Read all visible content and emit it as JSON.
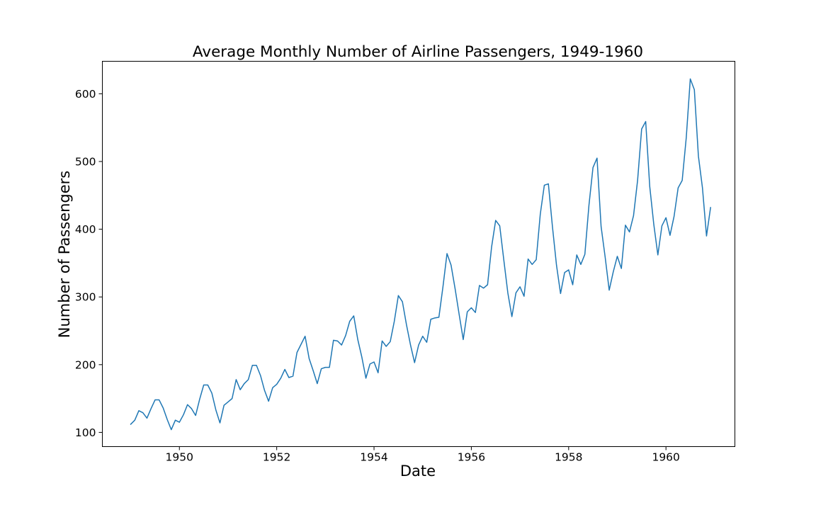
{
  "chart_data": {
    "type": "line",
    "title": "Average Monthly Number of Airline Passengers, 1949-1960",
    "xlabel": "Date",
    "ylabel": "Number of Passengers",
    "xlim": [
      "1948-06-01",
      "1961-06-01"
    ],
    "ylim": [
      79,
      648
    ],
    "x_ticks": [
      "1950",
      "1952",
      "1954",
      "1956",
      "1958",
      "1960"
    ],
    "y_ticks": [
      "100",
      "200",
      "300",
      "400",
      "500",
      "600"
    ],
    "grid": false,
    "legend": "none",
    "colors": {
      "line": "#1f77b4"
    },
    "x_start": "1949-01",
    "x_end": "1960-12",
    "x_step": "monthly",
    "series": [
      {
        "values": [
          112,
          118,
          132,
          129,
          121,
          135,
          148,
          148,
          136,
          119,
          104,
          118,
          115,
          126,
          141,
          135,
          125,
          149,
          170,
          170,
          158,
          133,
          114,
          140,
          145,
          150,
          178,
          163,
          172,
          178,
          199,
          199,
          184,
          162,
          146,
          166,
          171,
          180,
          193,
          181,
          183,
          218,
          230,
          242,
          209,
          191,
          172,
          194,
          196,
          196,
          236,
          235,
          229,
          243,
          264,
          272,
          237,
          211,
          180,
          201,
          204,
          188,
          235,
          227,
          234,
          264,
          302,
          293,
          259,
          229,
          203,
          229,
          242,
          233,
          267,
          269,
          270,
          315,
          364,
          347,
          312,
          274,
          237,
          278,
          284,
          277,
          317,
          313,
          318,
          374,
          413,
          405,
          355,
          306,
          271,
          306,
          315,
          301,
          356,
          348,
          355,
          422,
          465,
          467,
          404,
          347,
          305,
          336,
          340,
          318,
          362,
          348,
          363,
          435,
          491,
          505,
          404,
          359,
          310,
          337,
          360,
          342,
          406,
          396,
          420,
          472,
          548,
          559,
          463,
          407,
          362,
          405,
          417,
          391,
          419,
          461,
          472,
          535,
          622,
          606,
          508,
          461,
          390,
          432
        ]
      }
    ]
  }
}
